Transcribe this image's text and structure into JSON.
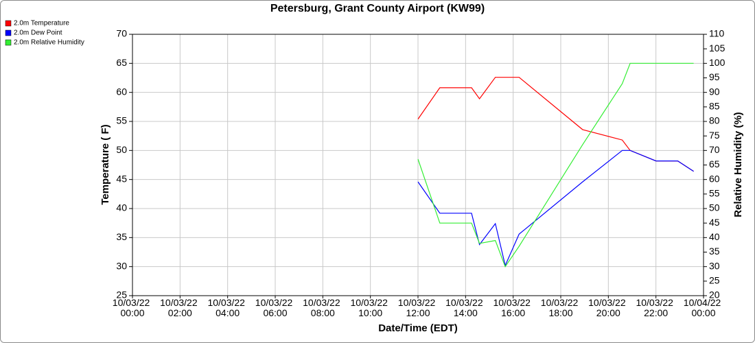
{
  "chart_data": {
    "type": "line",
    "title": "Petersburg, Grant County Airport (KW99)",
    "x_label": "Date/Time (EDT)",
    "y_label": "Temperature ( F)",
    "y2_label": "Relative Humidity (%)",
    "x": [
      "10/03/22 12:00",
      "10/03/22 12:55",
      "10/03/22 14:15",
      "10/03/22 14:35",
      "10/03/22 15:15",
      "10/03/22 15:40",
      "10/03/22 16:15",
      "10/03/22 18:55",
      "10/03/22 20:35",
      "10/03/22 20:55",
      "10/03/22 22:00",
      "10/03/22 22:55",
      "10/03/22 23:35"
    ],
    "series": [
      {
        "name": "2.0m Temperature",
        "color": "#ff0000",
        "values": [
          55.4,
          60.8,
          60.8,
          58.9,
          62.6,
          62.6,
          62.6,
          53.6,
          51.8,
          50.0,
          48.2,
          48.2,
          46.4
        ]
      },
      {
        "name": "2.0m Dew Point",
        "color": "#0000ff",
        "values": [
          44.6,
          39.2,
          39.2,
          33.8,
          37.4,
          30.2,
          35.6,
          44.6,
          50.0,
          50.0,
          48.2,
          48.2,
          46.4
        ]
      },
      {
        "name": "2.0m Relative Humidity",
        "color": "#33ee33",
        "axis": "y2",
        "values": [
          67,
          45,
          45,
          38,
          39,
          30,
          37,
          72,
          93,
          100,
          100,
          100,
          100
        ]
      }
    ],
    "xlim": [
      "10/03/22 00:00",
      "10/04/22 00:00"
    ],
    "xticks": [
      "10/03/22 00:00",
      "10/03/22 02:00",
      "10/03/22 04:00",
      "10/03/22 06:00",
      "10/03/22 08:00",
      "10/03/22 10:00",
      "10/03/22 12:00",
      "10/03/22 14:00",
      "10/03/22 16:00",
      "10/03/22 18:00",
      "10/03/22 20:00",
      "10/03/22 22:00",
      "10/04/22 00:00"
    ],
    "ylim": [
      25,
      70
    ],
    "yticks": [
      25,
      30,
      35,
      40,
      45,
      50,
      55,
      60,
      65,
      70
    ],
    "y2lim": [
      20,
      110
    ],
    "y2ticks": [
      20,
      25,
      30,
      35,
      40,
      45,
      50,
      55,
      60,
      65,
      70,
      75,
      80,
      85,
      90,
      95,
      100,
      105,
      110
    ],
    "grid": true,
    "legend": "top-left"
  }
}
